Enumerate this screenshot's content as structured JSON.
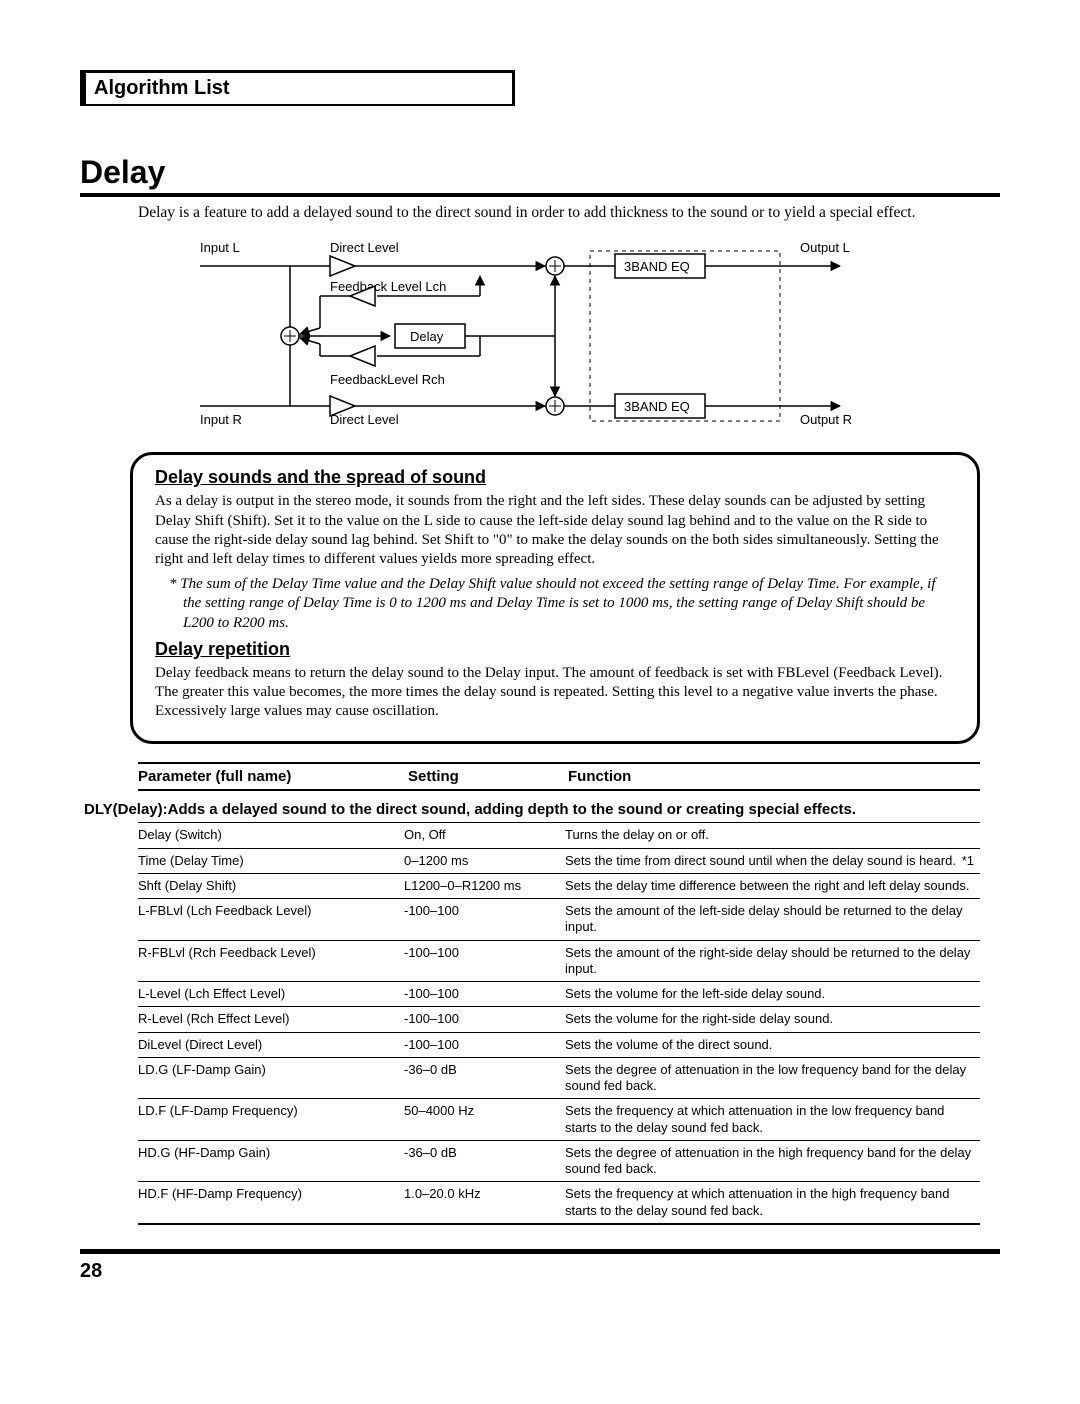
{
  "header_tab": "Algorithm List",
  "section_title": "Delay",
  "intro": "Delay is a feature to add a delayed sound to the direct sound in order to add thickness to the sound or to yield a special effect.",
  "diagram": {
    "labels": {
      "input_l": "Input L",
      "input_r": "Input R",
      "direct_level_top": "Direct Level",
      "direct_level_bot": "Direct Level",
      "feedback_lch": "Feedback Level Lch",
      "feedback_rch": "FeedbackLevel Rch",
      "delay_box": "Delay",
      "eq_top": "3BAND EQ",
      "eq_bot": "3BAND EQ",
      "output_l": "Output L",
      "output_r": "Output R"
    }
  },
  "callout": {
    "h1": "Delay sounds and the spread of sound",
    "p1": "As a delay is output in the stereo mode, it sounds from the right and the left sides. These delay sounds can be adjusted by setting Delay Shift (Shift). Set it to the value on the L side to cause the left-side delay sound lag behind and to the value on the R side to cause the right-side delay sound lag behind. Set Shift to \"0\" to make the delay sounds on the both sides simultaneously. Setting the right and left delay times to different values yields more spreading effect.",
    "note": "*  The sum of the Delay Time value and the Delay Shift value should not exceed the setting range of Delay Time. For example, if the setting range of Delay Time is 0 to 1200 ms and Delay Time is set to 1000 ms, the setting range of Delay Shift should be L200 to R200 ms.",
    "h2": "Delay repetition",
    "p2": "Delay feedback means to return the delay sound to the Delay input. The amount of feedback is set with FBLevel (Feedback Level). The greater this value becomes, the more times the delay sound is repeated. Setting this level to a negative value inverts the phase. Excessively large values may cause oscillation."
  },
  "table_header": {
    "param": "Parameter (full name)",
    "setting": "Setting",
    "func": "Function"
  },
  "group_title": "DLY(Delay):Adds a delayed sound to the direct sound, adding depth to the sound or creating special effects.",
  "rows": [
    {
      "p": "Delay (Switch)",
      "s": "On, Off",
      "f": "Turns the delay on or off."
    },
    {
      "p": "Time (Delay Time)",
      "s": "0–1200 ms",
      "f": "Sets the time from direct sound until when the delay sound is heard.",
      "note": "*1"
    },
    {
      "p": "Shft (Delay Shift)",
      "s": "L1200–0–R1200 ms",
      "f": "Sets the delay time difference between the right and left delay sounds."
    },
    {
      "p": "L-FBLvl (Lch Feedback Level)",
      "s": "-100–100",
      "f": "Sets the amount of the left-side delay should be returned to the delay input."
    },
    {
      "p": "R-FBLvl (Rch Feedback Level)",
      "s": "-100–100",
      "f": "Sets the amount of the right-side delay should be returned to the delay input."
    },
    {
      "p": "L-Level (Lch Effect Level)",
      "s": "-100–100",
      "f": "Sets the volume for the left-side delay sound."
    },
    {
      "p": "R-Level (Rch Effect Level)",
      "s": "-100–100",
      "f": "Sets the volume for the right-side delay sound."
    },
    {
      "p": "DiLevel (Direct Level)",
      "s": "-100–100",
      "f": "Sets the volume of the direct sound."
    },
    {
      "p": "LD.G (LF-Damp Gain)",
      "s": "-36–0 dB",
      "f": "Sets the degree of attenuation in the low frequency band for the delay sound fed back."
    },
    {
      "p": "LD.F (LF-Damp Frequency)",
      "s": "50–4000 Hz",
      "f": "Sets the frequency at which attenuation in the low frequency band starts to the delay sound fed back."
    },
    {
      "p": "HD.G (HF-Damp Gain)",
      "s": "-36–0 dB",
      "f": "Sets the degree of attenuation in the high frequency band for the delay sound fed back."
    },
    {
      "p": "HD.F (HF-Damp Frequency)",
      "s": "1.0–20.0 kHz",
      "f": "Sets the frequency at which attenuation in the high frequency band starts to the delay sound fed back."
    }
  ],
  "page_number": "28"
}
